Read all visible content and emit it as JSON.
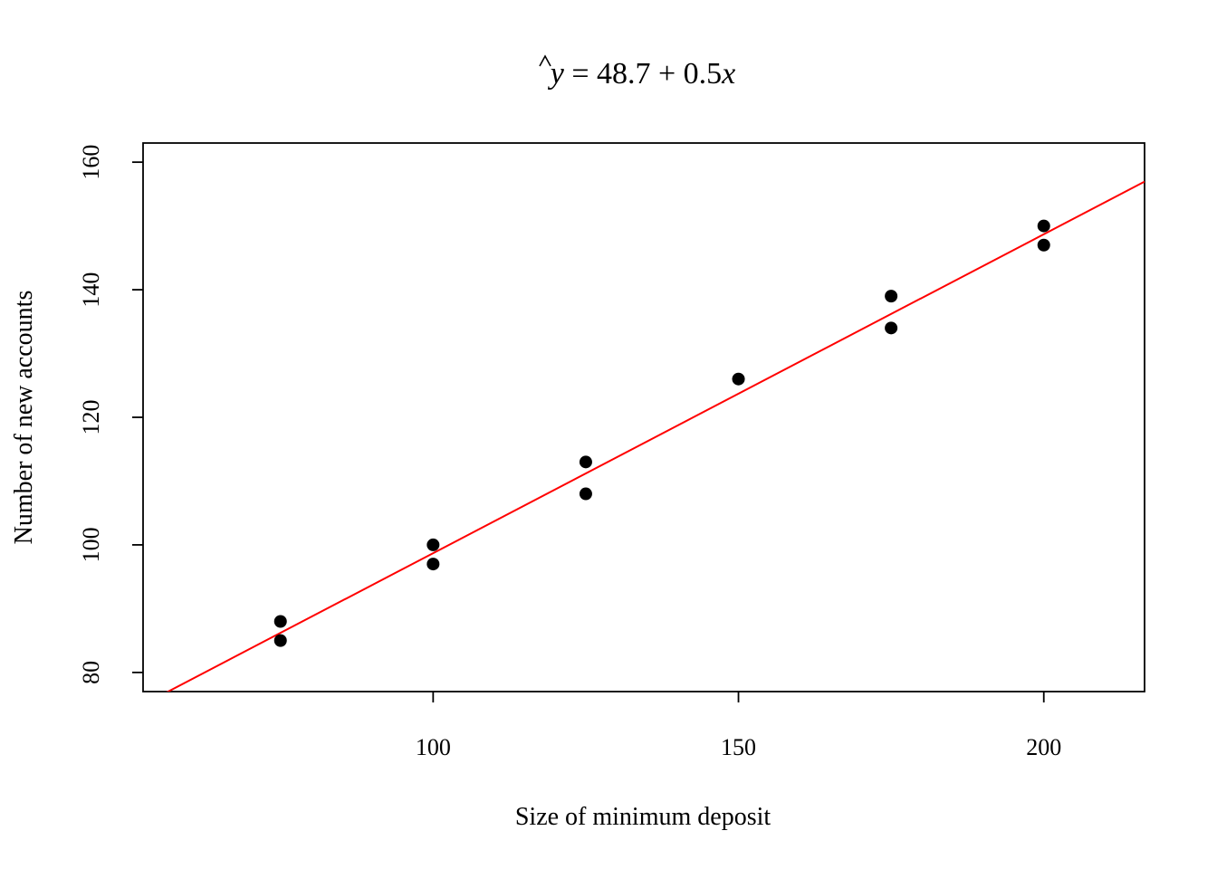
{
  "chart_data": {
    "type": "scatter",
    "title": {
      "yhat": "y",
      "equals": " = 48.7 + 0.5",
      "x": "x"
    },
    "xlabel": "Size of minimum deposit",
    "ylabel": "Number of new accounts",
    "xlim": [
      52.5,
      216.5
    ],
    "ylim": [
      77,
      163
    ],
    "x_ticks": [
      100,
      150,
      200
    ],
    "y_ticks": [
      80,
      100,
      120,
      140,
      160
    ],
    "grid": false,
    "legend": "none",
    "points": [
      {
        "x": 75,
        "y": 85
      },
      {
        "x": 75,
        "y": 88
      },
      {
        "x": 100,
        "y": 97
      },
      {
        "x": 100,
        "y": 100
      },
      {
        "x": 125,
        "y": 108
      },
      {
        "x": 125,
        "y": 113
      },
      {
        "x": 150,
        "y": 126
      },
      {
        "x": 175,
        "y": 134
      },
      {
        "x": 175,
        "y": 139
      },
      {
        "x": 200,
        "y": 147
      },
      {
        "x": 200,
        "y": 150
      }
    ],
    "regression_line": {
      "intercept": 48.7,
      "slope": 0.5
    },
    "colors": {
      "points": "#000000",
      "regression_line": "#ff0000",
      "axes": "#000000"
    }
  }
}
